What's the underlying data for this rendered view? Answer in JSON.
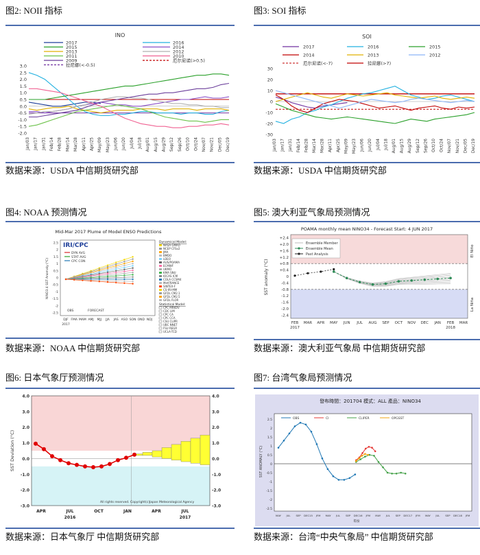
{
  "panels": {
    "p2": {
      "title": "图2:  NOII 指标",
      "source": "数据来源：USDA  中信期货研究部"
    },
    "p3": {
      "title": "图3:  SOI 指标",
      "source": "数据来源：USDA  中信期货研究部"
    },
    "p4": {
      "title": "图4:  NOAA 预测情况",
      "source": "数据来源：NOAA  中信期货研究部"
    },
    "p5": {
      "title": "图5:  澳大利亚气象局预测情况",
      "source": "数据来源：澳大利亚气象局  中信期货研究部"
    },
    "p6": {
      "title": "图6:  日本气象厅预测情况",
      "source": "数据来源：日本气象厅  中信期货研究部"
    },
    "p7": {
      "title": "图7:  台湾气象局预测情况",
      "source": "数据来源：台湾“中央气象局”  中信期货研究部"
    }
  },
  "chart_data": [
    {
      "id": "noii",
      "type": "line",
      "title": "INO",
      "ylim": [
        -2.0,
        3.0
      ],
      "yticks": [
        "3.0",
        "2.5",
        "2.0",
        "1.5",
        "1.0",
        "0.5",
        "0.0",
        "-0.5",
        "-1.0",
        "-1.5",
        "-2.0"
      ],
      "x_tick_labels": [
        "Jan/03",
        "Jan/17",
        "Jan/31",
        "Feb/14",
        "Feb/28",
        "Mar/14",
        "Mar/28",
        "Apr/11",
        "Apr/25",
        "May/09",
        "May/23",
        "Jun/06",
        "Jun/20",
        "Jul/04",
        "Jul/18",
        "Aug/01",
        "Aug/15",
        "Aug/29",
        "Sep/12",
        "Sep/26",
        "Oct/10",
        "Oct/24",
        "Nov/07",
        "Nov/21",
        "Dec/05",
        "Dec/19"
      ],
      "legend": [
        "2017",
        "2015",
        "2013",
        "2011",
        "2009",
        "拉尼娜(<-0.5)",
        "2016",
        "2014",
        "2012",
        "2010",
        "厄尔尼诺(>0.5)"
      ],
      "thresholds": [
        0.5,
        -0.5
      ],
      "series": [
        {
          "name": "2017",
          "color": "#1f3f99",
          "values": [
            0.3,
            0.2,
            0.1,
            0.0,
            0.0,
            0.1,
            0.2,
            0.3,
            0.3,
            0.2
          ]
        },
        {
          "name": "2016",
          "color": "#22b1e0",
          "values": [
            2.5,
            2.3,
            2.0,
            1.5,
            1.0,
            0.5,
            0.0,
            -0.4,
            -0.6,
            -0.7,
            -0.7,
            -0.6,
            -0.6,
            -0.5,
            -0.4,
            -0.4,
            -0.5,
            -0.5,
            -0.5,
            -0.6,
            -0.5,
            -0.5,
            -0.6,
            -0.6,
            -0.4,
            -0.3
          ]
        },
        {
          "name": "2015",
          "color": "#2aa02a",
          "values": [
            0.5,
            0.5,
            0.5,
            0.6,
            0.7,
            0.8,
            0.9,
            1.0,
            1.1,
            1.2,
            1.3,
            1.4,
            1.5,
            1.5,
            1.6,
            1.7,
            1.8,
            1.9,
            2.0,
            2.1,
            2.2,
            2.3,
            2.3,
            2.4,
            2.4,
            2.3
          ]
        },
        {
          "name": "2014",
          "color": "#8a4fc8",
          "values": [
            -0.4,
            -0.4,
            -0.5,
            -0.4,
            -0.3,
            -0.2,
            0.0,
            0.1,
            0.2,
            0.3,
            0.2,
            0.1,
            0.1,
            0.0,
            0.0,
            0.1,
            0.2,
            0.3,
            0.4,
            0.5,
            0.5,
            0.6,
            0.7,
            0.6,
            0.6,
            0.7
          ]
        },
        {
          "name": "2013",
          "color": "#e0b000",
          "values": [
            -0.2,
            -0.3,
            -0.2,
            -0.1,
            -0.1,
            0.0,
            -0.2,
            -0.3,
            -0.4,
            -0.5,
            -0.4,
            -0.3,
            -0.3,
            -0.3,
            -0.2,
            -0.2,
            -0.2,
            -0.3,
            -0.2,
            -0.2,
            -0.2,
            -0.3,
            -0.2,
            -0.2,
            -0.2,
            -0.3
          ]
        },
        {
          "name": "2012",
          "color": "#b0b0b0",
          "values": [
            -0.6,
            -0.5,
            -0.4,
            -0.4,
            -0.3,
            -0.2,
            0.0,
            0.1,
            0.3,
            0.5,
            0.6,
            0.7,
            0.7,
            0.6,
            0.6,
            0.5,
            0.4,
            0.3,
            0.2,
            0.2,
            0.1,
            0.1,
            0.0,
            0.0,
            -0.1,
            -0.1
          ]
        },
        {
          "name": "2011",
          "color": "#6cc24a",
          "values": [
            -1.5,
            -1.4,
            -1.2,
            -1.0,
            -0.8,
            -0.6,
            -0.4,
            -0.3,
            -0.2,
            -0.1,
            0.0,
            0.1,
            0.0,
            -0.1,
            -0.2,
            -0.4,
            -0.6,
            -0.8,
            -0.9,
            -1.0,
            -1.1,
            -1.1,
            -1.2,
            -1.1,
            -1.0,
            -1.0
          ]
        },
        {
          "name": "2010",
          "color": "#f06292",
          "values": [
            1.3,
            1.3,
            1.2,
            1.1,
            1.0,
            0.8,
            0.6,
            0.4,
            0.2,
            0.0,
            -0.3,
            -0.6,
            -0.9,
            -1.1,
            -1.3,
            -1.4,
            -1.5,
            -1.5,
            -1.6,
            -1.6,
            -1.5,
            -1.5,
            -1.4,
            -1.4,
            -1.3,
            -1.4
          ]
        },
        {
          "name": "2009",
          "color": "#6a3d9a",
          "values": [
            -0.8,
            -0.8,
            -0.7,
            -0.6,
            -0.5,
            -0.4,
            -0.3,
            -0.1,
            0.1,
            0.3,
            0.4,
            0.5,
            0.6,
            0.7,
            0.8,
            0.9,
            0.9,
            1.0,
            1.0,
            1.1,
            1.2,
            1.3,
            1.3,
            1.4,
            1.6,
            1.7
          ]
        }
      ]
    },
    {
      "id": "soi",
      "type": "line",
      "title": "SOI",
      "ylim": [
        -30,
        30
      ],
      "yticks": [
        "30",
        "20",
        "10",
        "0",
        "-10",
        "-20",
        "-30"
      ],
      "x_tick_labels": [
        "Jan/03",
        "Jan/17",
        "Jan/31",
        "Feb/14",
        "Feb/28",
        "Mar/14",
        "Mar/28",
        "Apr/11",
        "Apr/25",
        "May/09",
        "May/23",
        "Jun/06",
        "Jun/20",
        "Jul/04",
        "Jul/18",
        "Aug/01",
        "Aug/15",
        "Aug/29",
        "Sep/12",
        "Sep/26",
        "Oct/10",
        "Oct/24",
        "Nov/07",
        "Nov/21",
        "Dec/05",
        "Dec/19"
      ],
      "legend": [
        "2017",
        "2016",
        "2015",
        "2014",
        "2013",
        "2012",
        "厄尔尼诺(<-7)",
        "拉尼娜(>7)"
      ],
      "thresholds": [
        7,
        -7
      ],
      "series": [
        {
          "name": "2017",
          "color": "#7030a0",
          "values": [
            4,
            2,
            -1,
            -3,
            -5,
            -6,
            -4,
            -3,
            -2,
            -1
          ]
        },
        {
          "name": "2016",
          "color": "#22b1e0",
          "values": [
            -18,
            -20,
            -16,
            -14,
            -10,
            -8,
            -5,
            -3,
            0,
            3,
            5,
            7,
            8,
            10,
            12,
            14,
            10,
            6,
            4,
            2,
            3,
            5,
            6,
            4,
            2,
            0
          ]
        },
        {
          "name": "2015",
          "color": "#2aa02a",
          "values": [
            -2,
            -5,
            -8,
            -10,
            -12,
            -14,
            -15,
            -16,
            -15,
            -14,
            -15,
            -16,
            -17,
            -18,
            -19,
            -20,
            -18,
            -16,
            -17,
            -18,
            -16,
            -15,
            -14,
            -13,
            -12,
            -10
          ]
        },
        {
          "name": "2014",
          "color": "#c00000",
          "values": [
            6,
            2,
            -4,
            -8,
            -10,
            -6,
            -2,
            0,
            2,
            1,
            0,
            -2,
            -4,
            -6,
            -5,
            -4,
            -6,
            -8,
            -6,
            -5,
            -4,
            -6,
            -7,
            -5,
            -6,
            -5
          ]
        },
        {
          "name": "2013",
          "color": "#e0b000",
          "values": [
            0,
            2,
            4,
            6,
            8,
            6,
            4,
            3,
            5,
            7,
            6,
            5,
            6,
            7,
            8,
            6,
            5,
            4,
            3,
            4,
            5,
            3,
            2,
            3,
            4,
            3
          ]
        },
        {
          "name": "2012",
          "color": "#8ab4f8",
          "values": [
            10,
            8,
            6,
            4,
            2,
            0,
            -2,
            -4,
            -6,
            -4,
            -2,
            0,
            2,
            1,
            0,
            -1,
            0,
            2,
            3,
            2,
            1,
            0,
            -1,
            0,
            1,
            0
          ]
        }
      ]
    },
    {
      "id": "noaa",
      "type": "line",
      "title": "Mid-Mar 2017 Plume of Model ENSO Predictions",
      "badge": "IRI/CPC",
      "ylabel": "NINO3.4 SST Anomaly (°C)",
      "yticks": [
        "2.5",
        "2",
        "1.5",
        "1",
        "0.5",
        "0",
        "-0.5",
        "-1",
        "-1.5",
        "-2",
        "-2.5"
      ],
      "x_tick_labels": [
        "DJF",
        "FMA",
        "MAM",
        "AMJ",
        "MJJ",
        "JJA",
        "JAS",
        "ASO",
        "SON",
        "OND",
        "NDJ"
      ],
      "x_sub": "2017",
      "obs_label": "OBS",
      "forecast_label": "FORECAST",
      "legend_inset": [
        "DYN AVG",
        "STAT AVG",
        "CPC CON"
      ],
      "dynamical_header": "Dynamical Model:",
      "dynamical_models": [
        "NASA GMAO",
        "NCEP CFSv2",
        "JMA",
        "BMDO",
        "LDEO",
        "AUS/POAMA",
        "ECMWF",
        "UKMO",
        "KMA SNU",
        "IOCAS ICM",
        "COLA CCSM4",
        "MetFRANCE",
        "SINTEX-F",
        "CS-IRI-MM",
        "GFDL CM2.1",
        "GFDL CM2.5",
        "GFDL FLOR"
      ],
      "statistical_header": "Statistical Model:",
      "statistical_models": [
        "CPC MRKOV",
        "CDC LIM",
        "CPC CA",
        "CPC CCA",
        "CSU CLIPR",
        "UBC NNET",
        "FSU REGR",
        "UCLA-TCD"
      ],
      "averages": {
        "DYN AVG": [
          -0.1,
          0.1,
          0.3,
          0.5,
          0.6,
          0.7,
          0.75,
          0.8,
          0.8
        ],
        "STAT AVG": [
          -0.1,
          0.1,
          0.2,
          0.3,
          0.4,
          0.45,
          0.5,
          0.5,
          0.5
        ]
      }
    },
    {
      "id": "poama",
      "type": "line",
      "title": "POAMA monthly mean NINO34 - Forecast Start: 4 JUN 2017",
      "ylabel": "SST anomaly (°C)",
      "yticks": [
        "+2.4",
        "+2.0",
        "+1.6",
        "+1.2",
        "+0.8",
        "+0.4",
        "0",
        "-0.4",
        "-0.8",
        "-1.2",
        "-1.6",
        "-2.0",
        "-2.4"
      ],
      "x_tick_labels": [
        "FEB",
        "MAR",
        "APR",
        "MAY",
        "JUN",
        "JUL",
        "AUG",
        "SEP",
        "OCT",
        "NOV",
        "DEC",
        "JAN",
        "FEB",
        "MAR"
      ],
      "year_labels": [
        "2017",
        "2018"
      ],
      "legend": [
        "Ensemble Member",
        "Ensemble Mean",
        "Past Analysis"
      ],
      "side_labels": [
        "El Niño",
        "La Niña"
      ],
      "thresholds": [
        0.8,
        -0.8
      ],
      "past_analysis": [
        0.05,
        0.2,
        0.3,
        0.45
      ],
      "ensemble_mean": [
        0.3,
        -0.1,
        -0.35,
        -0.5,
        -0.45,
        -0.3,
        -0.25,
        -0.2,
        -0.15,
        -0.1
      ]
    },
    {
      "id": "jma",
      "type": "line",
      "ylabel": "SST Deviation (°C)",
      "yticks": [
        "4.0",
        "3.0",
        "2.0",
        "1.0",
        "0.0",
        "-1.0",
        "-2.0",
        "-3.0"
      ],
      "x_tick_labels": [
        "APR",
        "JUL",
        "OCT",
        "JAN",
        "APR",
        "JUL"
      ],
      "year_labels": [
        "2016",
        "2017"
      ],
      "copyright": "All rights reserved. Copyright(c)Japan Meteorological Agency",
      "observed": [
        0.95,
        0.6,
        0.15,
        -0.1,
        -0.3,
        -0.4,
        -0.5,
        -0.55,
        -0.5,
        -0.35,
        -0.1,
        0.05,
        0.25
      ],
      "forecast_upper": [
        0.3,
        0.4,
        0.5,
        0.7,
        0.9,
        1.1,
        1.3,
        1.5
      ],
      "forecast_lower": [
        0.2,
        0.2,
        0.1,
        0.0,
        -0.1,
        -0.2,
        -0.3,
        -0.4
      ]
    },
    {
      "id": "cwb",
      "type": "line",
      "title": "發布時間：201704    模式：ALL    產品：NINO34",
      "ylabel": "SST ANOMALY (°C)",
      "yticks": [
        "2.5",
        "2",
        "1.5",
        "1",
        "0.5",
        "0",
        "-0.5",
        "-1",
        "-1.5",
        "-2",
        "-2.5"
      ],
      "x_tick_labels": [
        "MAY",
        "JUL",
        "SEP",
        "DEC15",
        "JFM",
        "MAY",
        "JUL",
        "SEP",
        "DEC16",
        "JFM",
        "MAY",
        "JUL",
        "SEP",
        "DEC17",
        "JFM",
        "MAY",
        "JUL",
        "SEP",
        "DEC18",
        "JFM"
      ],
      "xlabel": "年份",
      "legend": [
        "OBS",
        "CI",
        "CLIPER",
        "OPGSST"
      ],
      "series": [
        {
          "name": "OBS",
          "color": "#1f77b4",
          "values": [
            0.9,
            1.3,
            1.7,
            2.1,
            2.3,
            2.2,
            1.8,
            1.1,
            0.3,
            -0.3,
            -0.7,
            -0.9,
            -0.9,
            -0.8,
            -0.6
          ]
        },
        {
          "name": "CI",
          "color": "#e53935",
          "values": [
            0.2,
            0.35,
            0.6,
            0.85,
            0.95,
            0.9,
            0.7
          ]
        },
        {
          "name": "CLIPER",
          "color": "#43a047",
          "values": [
            0.1,
            0.25,
            0.4,
            0.5,
            0.45,
            0.1,
            -0.2,
            -0.5,
            -0.55,
            -0.55,
            -0.5,
            -0.55
          ]
        },
        {
          "name": "OPGSST",
          "color": "#f2a30f",
          "values": [
            0.15,
            0.3,
            0.45,
            0.55,
            0.5
          ]
        }
      ]
    }
  ]
}
